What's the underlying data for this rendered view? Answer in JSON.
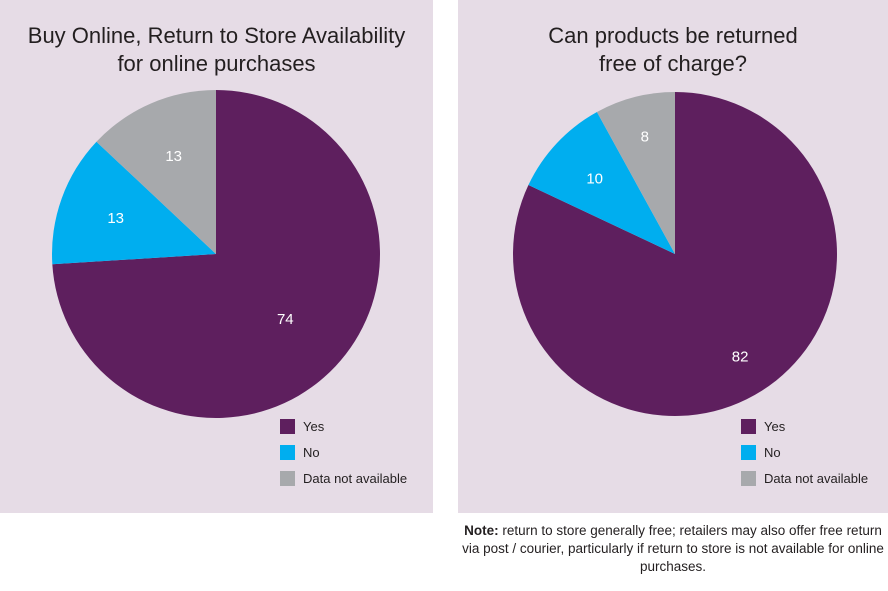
{
  "colors": {
    "yes": "#5e1f5e",
    "no": "#00aeef",
    "na": "#a7a9ac",
    "panel": "#e6dce6"
  },
  "chart_data": [
    {
      "type": "pie",
      "title_lines": [
        "Buy Online, Return to Store Availability",
        "for online purchases"
      ],
      "slices": [
        {
          "name": "Yes",
          "value": 74,
          "label": "74"
        },
        {
          "name": "No",
          "value": 13,
          "label": "13"
        },
        {
          "name": "Data not available",
          "value": 13,
          "label": "13"
        }
      ],
      "legend": [
        "Yes",
        "No",
        "Data not available"
      ],
      "legend_position": "bottom-right"
    },
    {
      "type": "pie",
      "title_lines": [
        "Can products be returned",
        "free of charge?"
      ],
      "slices": [
        {
          "name": "Yes",
          "value": 82,
          "label": "82"
        },
        {
          "name": "No",
          "value": 10,
          "label": "10"
        },
        {
          "name": "Data not available",
          "value": 8,
          "label": "8"
        }
      ],
      "legend": [
        "Yes",
        "No",
        "Data not available"
      ],
      "legend_position": "bottom-right"
    }
  ],
  "note": {
    "label": "Note:",
    "text": " return to store generally free; retailers may also offer free return via post / courier, particularly if return to store is not available for online purchases."
  }
}
